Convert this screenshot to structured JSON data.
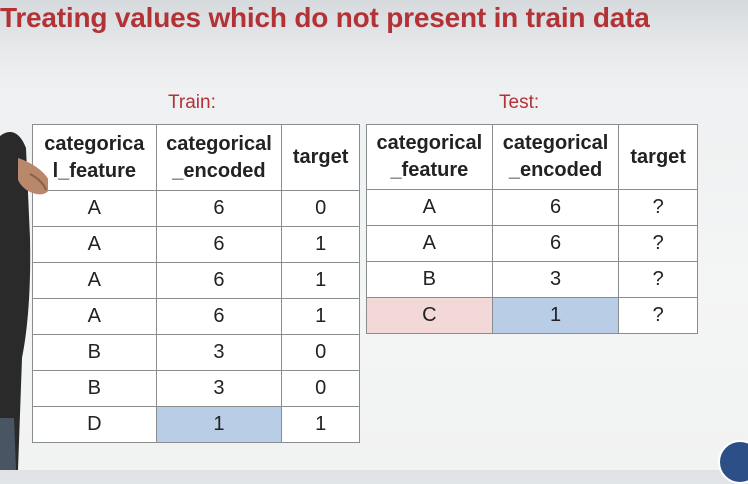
{
  "slide": {
    "title": "Treating values which do not present in train data"
  },
  "train": {
    "label": "Train:",
    "headers": [
      "categorical_feature",
      "categorical _encoded",
      "target"
    ],
    "header_lines": [
      [
        "categorica",
        "l_feature"
      ],
      [
        "categorical",
        "_encoded"
      ],
      [
        "target"
      ]
    ],
    "rows": [
      [
        "A",
        "6",
        "0"
      ],
      [
        "A",
        "6",
        "1"
      ],
      [
        "A",
        "6",
        "1"
      ],
      [
        "A",
        "6",
        "1"
      ],
      [
        "B",
        "3",
        "0"
      ],
      [
        "B",
        "3",
        "0"
      ],
      [
        "D",
        "1",
        "1"
      ]
    ]
  },
  "test": {
    "label": "Test:",
    "headers": [
      "categorical _feature",
      "categorical _encoded",
      "target"
    ],
    "header_lines": [
      [
        "categorical",
        "_feature"
      ],
      [
        "categorical",
        "_encoded"
      ],
      [
        "target"
      ]
    ],
    "rows": [
      [
        "A",
        "6",
        "?"
      ],
      [
        "A",
        "6",
        "?"
      ],
      [
        "B",
        "3",
        "?"
      ],
      [
        "C",
        "1",
        "?"
      ]
    ]
  },
  "colors": {
    "title": "#b23236",
    "highlight_encoded": "#b9cde6",
    "highlight_new_category": "#f3d8d8"
  }
}
